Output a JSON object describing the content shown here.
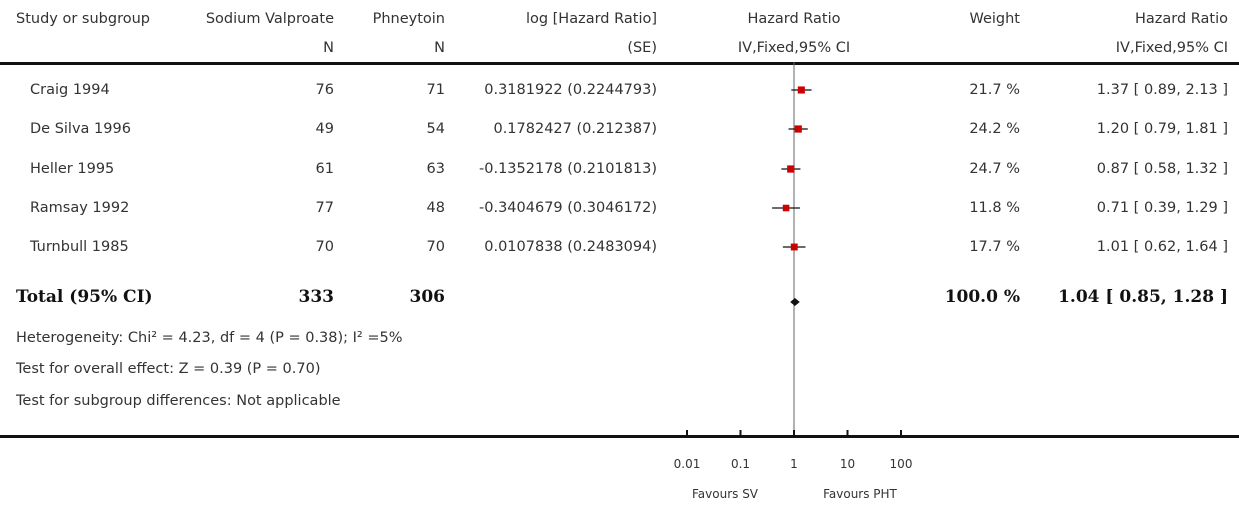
{
  "header": {
    "col_study": "Study or subgroup",
    "col_sv": "Sodium Valproate",
    "col_sv_sub": "N",
    "col_pht": "Phneytoin",
    "col_pht_sub": "N",
    "col_loghr": "log [Hazard Ratio]",
    "col_loghr_sub": "(SE)",
    "col_hr_plot": "Hazard Ratio",
    "col_hr_plot_sub": "IV,Fixed,95% CI",
    "col_weight": "Weight",
    "col_hr": "Hazard Ratio",
    "col_hr_sub": "IV,Fixed,95% CI"
  },
  "studies": [
    {
      "name": "Craig 1994",
      "sv_n": "76",
      "pht_n": "71",
      "loghr_se": "0.3181922 (0.2244793)",
      "weight": "21.7 %",
      "hr_ci": "1.37 [ 0.89, 2.13 ]"
    },
    {
      "name": "De Silva 1996",
      "sv_n": "49",
      "pht_n": "54",
      "loghr_se": "0.1782427 (0.212387)",
      "weight": "24.2 %",
      "hr_ci": "1.20 [ 0.79, 1.81 ]"
    },
    {
      "name": "Heller 1995",
      "sv_n": "61",
      "pht_n": "63",
      "loghr_se": "-0.1352178 (0.2101813)",
      "weight": "24.7 %",
      "hr_ci": "0.87 [ 0.58, 1.32 ]"
    },
    {
      "name": "Ramsay 1992",
      "sv_n": "77",
      "pht_n": "48",
      "loghr_se": "-0.3404679 (0.3046172)",
      "weight": "11.8 %",
      "hr_ci": "0.71 [ 0.39, 1.29 ]"
    },
    {
      "name": "Turnbull 1985",
      "sv_n": "70",
      "pht_n": "70",
      "loghr_se": "0.0107838 (0.2483094)",
      "weight": "17.7 %",
      "hr_ci": "1.01 [ 0.62, 1.64 ]"
    }
  ],
  "total": {
    "label": "Total (95% CI)",
    "sv_n": "333",
    "pht_n": "306",
    "weight": "100.0 %",
    "hr_ci": "1.04 [ 0.85, 1.28 ]"
  },
  "footer": {
    "heterogeneity": "Heterogeneity: Chi² = 4.23, df = 4 (P = 0.38); I² =5%",
    "overall_effect": "Test for overall effect: Z = 0.39 (P = 0.70)",
    "subgroup_diff": "Test for subgroup differences: Not applicable"
  },
  "axis": {
    "favours_left": "Favours SV",
    "favours_right": "Favours PHT"
  },
  "colors": {
    "marker": "#cc0000",
    "line": "#111111",
    "text": "#333333"
  },
  "chart_data": {
    "type": "scatter",
    "x_scale": "log",
    "xlim": [
      0.01,
      100
    ],
    "ticks": [
      {
        "value": 0.01,
        "label": "0.01"
      },
      {
        "value": 0.1,
        "label": "0.1"
      },
      {
        "value": 1,
        "label": "1"
      },
      {
        "value": 10,
        "label": "10"
      },
      {
        "value": 100,
        "label": "100"
      }
    ],
    "reference_line": 1,
    "points": [
      {
        "study": "Craig 1994",
        "hr": 1.37,
        "lo": 0.89,
        "hi": 2.13,
        "weight": 21.7
      },
      {
        "study": "De Silva 1996",
        "hr": 1.2,
        "lo": 0.79,
        "hi": 1.81,
        "weight": 24.2
      },
      {
        "study": "Heller 1995",
        "hr": 0.87,
        "lo": 0.58,
        "hi": 1.32,
        "weight": 24.7
      },
      {
        "study": "Ramsay 1992",
        "hr": 0.71,
        "lo": 0.39,
        "hi": 1.29,
        "weight": 11.8
      },
      {
        "study": "Turnbull 1985",
        "hr": 1.01,
        "lo": 0.62,
        "hi": 1.64,
        "weight": 17.7
      }
    ],
    "total": {
      "hr": 1.04,
      "lo": 0.85,
      "hi": 1.28
    }
  }
}
